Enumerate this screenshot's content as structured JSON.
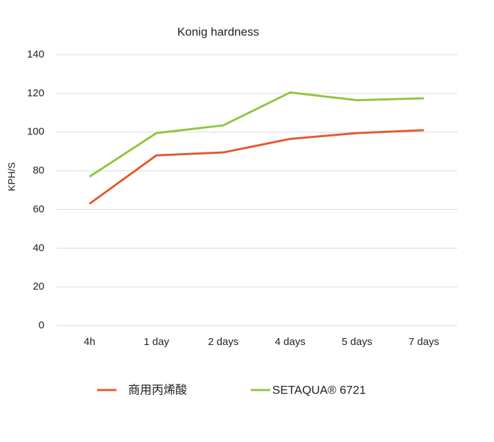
{
  "chart_data": {
    "type": "line",
    "title": "Konig hardness",
    "y_label": "KPH/S",
    "categories": [
      "4h",
      "1 day",
      "2 days",
      "4 days",
      "5 days",
      "7 days"
    ],
    "series": [
      {
        "name": "商用丙烯酸",
        "color": "#e8572a",
        "values": [
          63,
          88,
          89.5,
          96.5,
          99.5,
          101
        ]
      },
      {
        "name": "SETAQUA® 6721",
        "color": "#8cc63e",
        "values": [
          77,
          99.5,
          103.5,
          120.5,
          116.5,
          117.5
        ]
      }
    ],
    "ylim": [
      0,
      140
    ],
    "yticks": [
      0,
      20,
      40,
      60,
      80,
      100,
      120,
      140
    ],
    "grid": true,
    "legend": "bottom"
  }
}
